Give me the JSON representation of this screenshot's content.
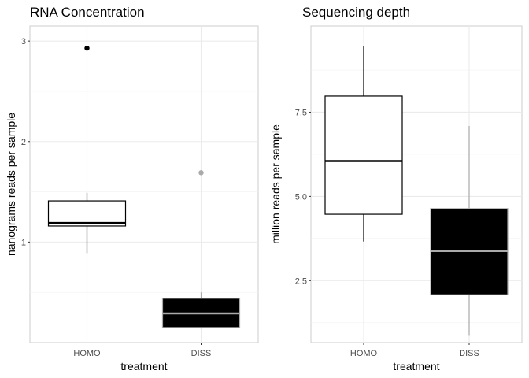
{
  "chart_data": [
    {
      "type": "boxplot",
      "title": "RNA Concentration",
      "xlabel": "treatment",
      "ylabel": "nanograms reads per sample",
      "categories": [
        "HOMO",
        "DISS"
      ],
      "y_ticks": [
        1,
        2,
        3
      ],
      "y_tick_labels": [
        "1",
        "2",
        "3"
      ],
      "ylim": [
        0.0,
        3.15
      ],
      "grid": true,
      "boxes": [
        {
          "category": "HOMO",
          "fill": "#ffffff",
          "stroke": "#000000",
          "median_color": "#000000",
          "whisker_low": 0.89,
          "q1": 1.16,
          "median": 1.19,
          "q3": 1.41,
          "whisker_high": 1.49,
          "outliers": [
            2.93
          ],
          "outlier_color": "#000000"
        },
        {
          "category": "DISS",
          "fill": "#000000",
          "stroke": "#aaaaaa",
          "median_color": "#aaaaaa",
          "whisker_low": 0.14,
          "q1": 0.15,
          "median": 0.29,
          "q3": 0.44,
          "whisker_high": 0.5,
          "outliers": [
            1.69
          ],
          "outlier_color": "#aaaaaa"
        }
      ]
    },
    {
      "type": "boxplot",
      "title": "Sequencing depth",
      "xlabel": "treatment",
      "ylabel": "million reads per sample",
      "categories": [
        "HOMO",
        "DISS"
      ],
      "y_ticks": [
        2.5,
        5.0,
        7.5
      ],
      "y_tick_labels": [
        "2.5",
        "5.0",
        "7.5"
      ],
      "ylim": [
        0.66,
        10.06
      ],
      "grid": true,
      "boxes": [
        {
          "category": "HOMO",
          "fill": "#ffffff",
          "stroke": "#000000",
          "median_color": "#000000",
          "whisker_low": 3.66,
          "q1": 4.47,
          "median": 6.05,
          "q3": 7.98,
          "whisker_high": 9.47,
          "outliers": [],
          "outlier_color": "#000000"
        },
        {
          "category": "DISS",
          "fill": "#000000",
          "stroke": "#aaaaaa",
          "median_color": "#aaaaaa",
          "whisker_low": 0.86,
          "q1": 2.08,
          "median": 3.38,
          "q3": 4.64,
          "whisker_high": 7.09,
          "outliers": [],
          "outlier_color": "#aaaaaa"
        }
      ]
    }
  ]
}
